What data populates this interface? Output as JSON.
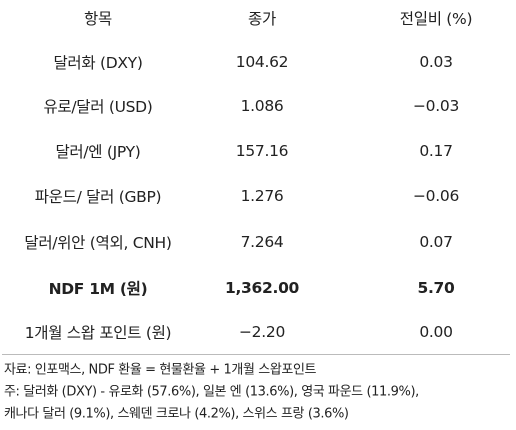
{
  "table": {
    "header": [
      "항목",
      "종가",
      "전일비 (%)"
    ],
    "rows": [
      [
        "달러화 (DXY)",
        "104.62",
        "0.03"
      ],
      [
        "유로/달러 (USD)",
        "1.086",
        "−0.03"
      ],
      [
        "달러/엔 (JPY)",
        "157.16",
        "0.17"
      ],
      [
        "파운드/ 달러 (GBP)",
        "1.276",
        "−0.06"
      ],
      [
        "달러/위안 (역외, CNH)",
        "7.264",
        "0.07"
      ],
      [
        "NDF 1M (원)",
        "1,362.00",
        "5.70"
      ],
      [
        "1개월 스왑 포인트 (원)",
        "−2.20",
        "0.00"
      ]
    ]
  },
  "notes": [
    "자료: 인포맥스, NDF 환율 = 현물환율 + 1개월 스왑포인트",
    "주: 달러화 (DXY) - 유로화 (57.6%), 일본 엔 (13.6%), 영국 파운드 (11.9%),",
    "캐나다 달러 (9.1%), 스웨덴 크로나 (4.2%), 스위스 프랑 (3.6%)"
  ]
}
